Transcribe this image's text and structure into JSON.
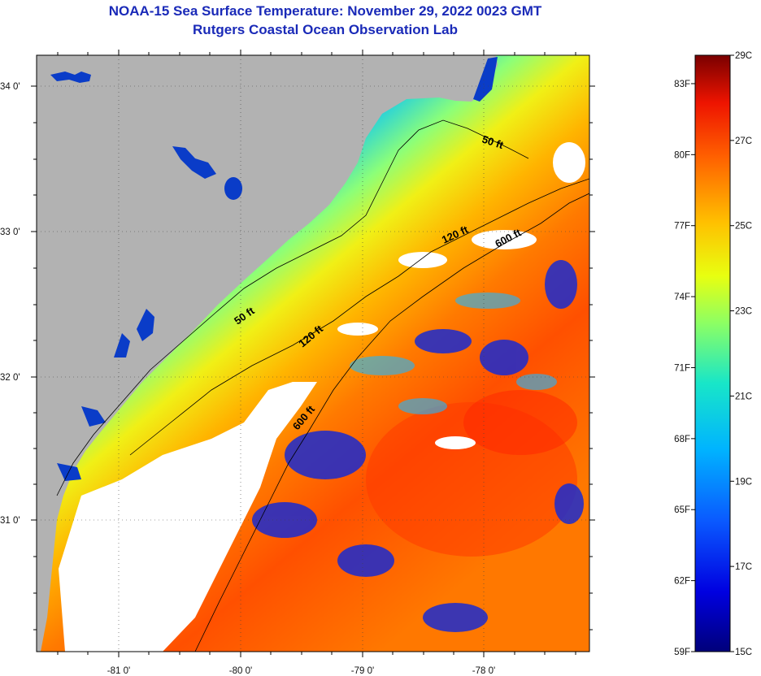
{
  "header": {
    "title": "NOAA-15 Sea Surface Temperature:  November 29, 2022 0023 GMT",
    "subtitle": "Rutgers Coastal Ocean Observation Lab"
  },
  "axes": {
    "lat_ticks": [
      {
        "value": 34,
        "label": "34 0'"
      },
      {
        "value": 33,
        "label": "33 0'"
      },
      {
        "value": 32,
        "label": "32 0'"
      },
      {
        "value": 31,
        "label": "31 0'"
      }
    ],
    "lon_ticks": [
      {
        "value": -81,
        "label": "-81 0'"
      },
      {
        "value": -80,
        "label": "-80 0'"
      },
      {
        "value": -79,
        "label": "-79 0'"
      },
      {
        "value": -78,
        "label": "-78 0'"
      }
    ]
  },
  "contours": [
    {
      "label": "50 ft"
    },
    {
      "label": "50 ft"
    },
    {
      "label": "120 ft"
    },
    {
      "label": "120 ft"
    },
    {
      "label": "600 ft"
    },
    {
      "label": "600 ft"
    }
  ],
  "colorbar": {
    "fahrenheit_labels": [
      "83F",
      "80F",
      "77F",
      "74F",
      "71F",
      "68F",
      "65F",
      "62F",
      "59F"
    ],
    "celsius_labels": [
      "29C",
      "27C",
      "25C",
      "23C",
      "21C",
      "19C",
      "17C",
      "15C"
    ],
    "range_c": [
      15,
      29
    ],
    "range_f": [
      59,
      84.2
    ]
  },
  "colors": {
    "land": "#b2b2b2",
    "cloud": "#ffffff",
    "title": "#1a2ab8"
  }
}
